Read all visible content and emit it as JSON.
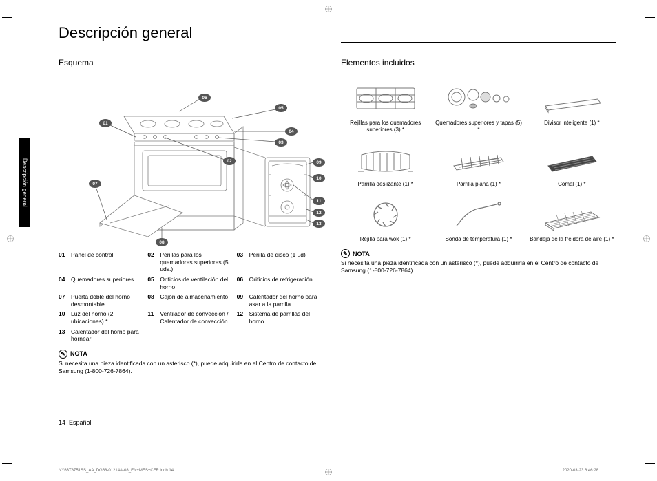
{
  "page": {
    "title": "Descripción general",
    "side_tab": "Descripción general",
    "page_number": "14",
    "language": "Español",
    "footer_file": "NY63T8751SS_AA_DG68-01214A-08_EN+MES+CFR.indb   14",
    "footer_date": "2020-03-23  6:46:28"
  },
  "left": {
    "heading": "Esquema",
    "callouts": [
      "01",
      "02",
      "03",
      "04",
      "05",
      "06",
      "07",
      "08",
      "09",
      "10",
      "11",
      "12",
      "13"
    ],
    "legend": [
      {
        "num": "01",
        "text": "Panel de control"
      },
      {
        "num": "02",
        "text": "Perillas para los quemadores superiores (5 uds.)"
      },
      {
        "num": "03",
        "text": "Perilla de disco (1 ud)"
      },
      {
        "num": "04",
        "text": "Quemadores superiores"
      },
      {
        "num": "05",
        "text": "Orificios de ventilación del horno"
      },
      {
        "num": "06",
        "text": "Orificios de refrigeración"
      },
      {
        "num": "07",
        "text": "Puerta doble del horno desmontable"
      },
      {
        "num": "08",
        "text": "Cajón de almacenamiento"
      },
      {
        "num": "09",
        "text": "Calentador del horno para asar a la parrilla"
      },
      {
        "num": "10",
        "text": "Luz del horno (2 ubicaciones) *"
      },
      {
        "num": "11",
        "text": "Ventilador de convección / Calentador de convección"
      },
      {
        "num": "12",
        "text": "Sistema de parrillas del horno"
      },
      {
        "num": "13",
        "text": "Calentador del horno para hornear"
      }
    ],
    "nota_label": "NOTA",
    "nota_text": "Si necesita una pieza identificada con un asterisco (*), puede adquirirla en el Centro de contacto de Samsung (1-800-726-7864)."
  },
  "right": {
    "heading": "Elementos incluidos",
    "items": [
      {
        "label": "Rejillas para los quemadores superiores (3) *"
      },
      {
        "label": "Quemadores superiores y tapas (5) *"
      },
      {
        "label": "Divisor inteligente (1) *"
      },
      {
        "label": "Parrilla deslizante (1) *"
      },
      {
        "label": "Parrilla plana (1) *"
      },
      {
        "label": "Comal (1) *"
      },
      {
        "label": "Rejilla para wok (1) *"
      },
      {
        "label": "Sonda de temperatura (1) *"
      },
      {
        "label": "Bandeja de la freidora de aire (1) *"
      }
    ],
    "nota_label": "NOTA",
    "nota_text": "Si necesita una pieza identificada con un asterisco (*), puede adquirirla en el Centro de contacto de Samsung (1-800-726-7864)."
  },
  "style": {
    "callout_fill": "#555555",
    "stroke": "#808080",
    "stroke_dark": "#505050"
  }
}
